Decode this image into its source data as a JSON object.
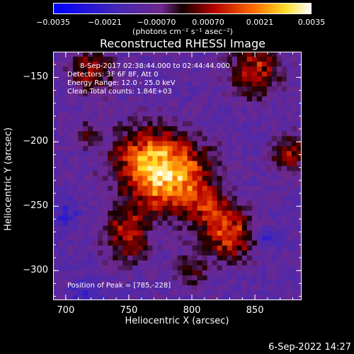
{
  "chart_data": {
    "type": "heatmap",
    "title": "Reconstructed RHESSI Image",
    "xlabel": "Heliocentric X (arcsec)",
    "ylabel": "Heliocentric Y (arcsec)",
    "xlim": [
      690,
      887
    ],
    "ylim": [
      -323,
      -130
    ],
    "x_ticks": [
      700,
      750,
      800,
      850
    ],
    "y_ticks": [
      -150,
      -200,
      -250,
      -300
    ],
    "x_tick_labels": [
      "700",
      "750",
      "800",
      "850"
    ],
    "y_tick_labels": [
      "−150",
      "−200",
      "−250",
      "−300"
    ],
    "colorbar": {
      "range": [
        -0.0035,
        0.0035
      ],
      "ticks": [
        -0.0035,
        -0.0021,
        -0.0007,
        0.0007,
        0.0021,
        0.0035
      ],
      "tick_labels": [
        "−0.0035",
        "−0.0021",
        "−0.00070",
        "0.00070",
        "0.0021",
        "0.0035"
      ],
      "label": "(photons cm⁻² s⁻¹ asec⁻²)"
    },
    "sources": [
      {
        "x": 785,
        "y": -228,
        "sigma": 20,
        "amp": 0.0035
      },
      {
        "x": 760,
        "y": -213,
        "sigma": 18,
        "amp": 0.0021
      },
      {
        "x": 750,
        "y": -272,
        "sigma": 14,
        "amp": 0.0021
      },
      {
        "x": 830,
        "y": -272,
        "sigma": 14,
        "amp": 0.0024
      },
      {
        "x": 815,
        "y": -252,
        "sigma": 10,
        "amp": 0.0016
      },
      {
        "x": 850,
        "y": -145,
        "sigma": 14,
        "amp": 0.0021
      },
      {
        "x": 720,
        "y": -145,
        "sigma": 12,
        "amp": 0.0018
      },
      {
        "x": 878,
        "y": -210,
        "sigma": 10,
        "amp": 0.0018
      },
      {
        "x": 715,
        "y": -195,
        "sigma": 7,
        "amp": 0.0012
      },
      {
        "x": 800,
        "y": -300,
        "sigma": 9,
        "amp": 0.0012
      },
      {
        "x": 700,
        "y": -255,
        "sigma": 8,
        "amp": -0.0009
      },
      {
        "x": 770,
        "y": -270,
        "sigma": 8,
        "amp": -0.0008
      },
      {
        "x": 860,
        "y": -275,
        "sigma": 6,
        "amp": -0.0012
      },
      {
        "x": 715,
        "y": -318,
        "sigma": 8,
        "amp": -0.001
      }
    ],
    "background": -0.0011,
    "annotations": {
      "time_range": "8-Sep-2017 02:38:44.000 to 02:44:44.000",
      "detectors": "Detectors: 3F 6F 8F, Att 0",
      "energy": "Energy Range: 12.0 - 25.0 keV",
      "clean": "Clean    Total counts: 1.84E+03",
      "peak": "Position of Peak = [785,-228]"
    }
  },
  "footer": {
    "timestamp": "6-Sep-2022 14:27"
  }
}
